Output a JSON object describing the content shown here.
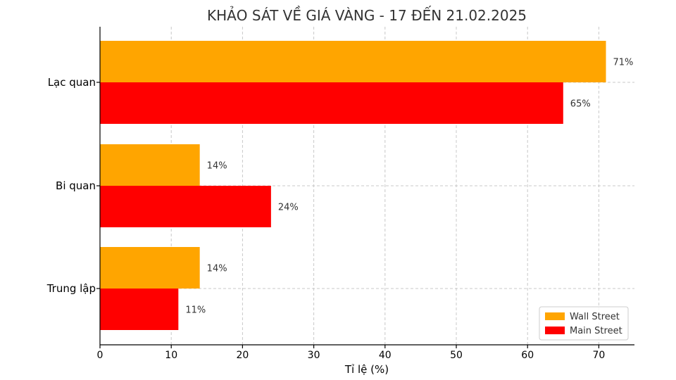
{
  "chart_data": {
    "type": "bar",
    "orientation": "horizontal",
    "title": "KHẢO SÁT VỀ GIÁ VÀNG - 17 ĐẾN 21.02.2025",
    "xlabel": "Tỉ lệ (%)",
    "ylabel": "",
    "xlim": [
      0,
      75
    ],
    "x_ticks": [
      0,
      10,
      20,
      30,
      40,
      50,
      60,
      70
    ],
    "grid": true,
    "legend_position": "bottom-right",
    "categories": [
      "Lạc quan",
      "Bi quan",
      "Trung lập"
    ],
    "series": [
      {
        "name": "Wall Street",
        "color": "#FFA500",
        "values": [
          71,
          14,
          14
        ],
        "labels": [
          "71%",
          "14%",
          "14%"
        ]
      },
      {
        "name": "Main Street",
        "color": "#FF0000",
        "values": [
          65,
          24,
          11
        ],
        "labels": [
          "65%",
          "24%",
          "11%"
        ]
      }
    ]
  }
}
